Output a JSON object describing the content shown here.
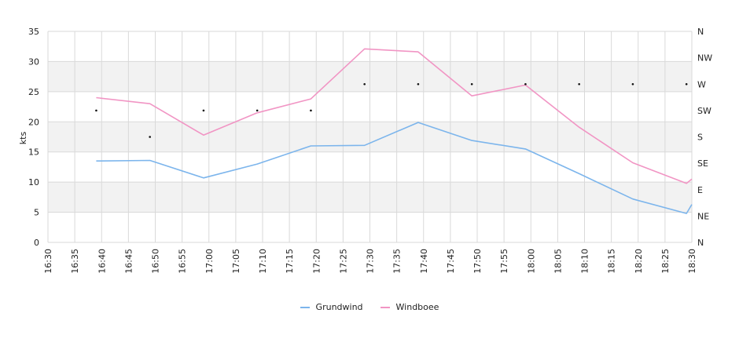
{
  "chart_data": {
    "type": "line",
    "ylabel": "kts",
    "ylim": [
      0,
      35
    ],
    "yticks": [
      "0",
      "5",
      "10",
      "15",
      "20",
      "25",
      "30",
      "35"
    ],
    "right_ticks": [
      "N",
      "NE",
      "E",
      "SE",
      "S",
      "SW",
      "W",
      "NW",
      "N"
    ],
    "x_ticks": [
      "16:30",
      "16:35",
      "16:40",
      "16:45",
      "16:50",
      "16:55",
      "17:00",
      "17:05",
      "17:10",
      "17:15",
      "17:20",
      "17:25",
      "17:30",
      "17:35",
      "17:40",
      "17:45",
      "17:50",
      "17:55",
      "18:00",
      "18:05",
      "18:10",
      "18:15",
      "18:20",
      "18:25",
      "18:30"
    ],
    "x": [
      "16:39",
      "16:49",
      "16:59",
      "17:09",
      "17:19",
      "17:29",
      "17:39",
      "17:49",
      "17:59",
      "18:09",
      "18:19",
      "18:29",
      "18:30"
    ],
    "series": [
      {
        "name": "Grundwind",
        "color": "#7cb5ec",
        "values": [
          13.5,
          13.6,
          10.7,
          13.0,
          16.0,
          16.1,
          19.9,
          16.9,
          15.5,
          11.4,
          7.2,
          4.8,
          6.3
        ]
      },
      {
        "name": "Windboee",
        "color": "#f195c4",
        "values": [
          24.0,
          23.0,
          17.8,
          21.5,
          23.8,
          32.1,
          31.6,
          24.3,
          26.1,
          19.1,
          13.2,
          9.8,
          10.5
        ]
      }
    ],
    "direction_markers": {
      "x": [
        "16:39",
        "16:49",
        "16:59",
        "17:09",
        "17:19",
        "17:29",
        "17:39",
        "17:49",
        "17:59",
        "18:09",
        "18:19",
        "18:29"
      ],
      "direction": [
        "SW",
        "S",
        "SW",
        "SW",
        "SW",
        "W",
        "W",
        "W",
        "W",
        "W",
        "W",
        "W"
      ]
    },
    "grid": true,
    "banded_rows": true,
    "legend_position": "bottom-center"
  }
}
